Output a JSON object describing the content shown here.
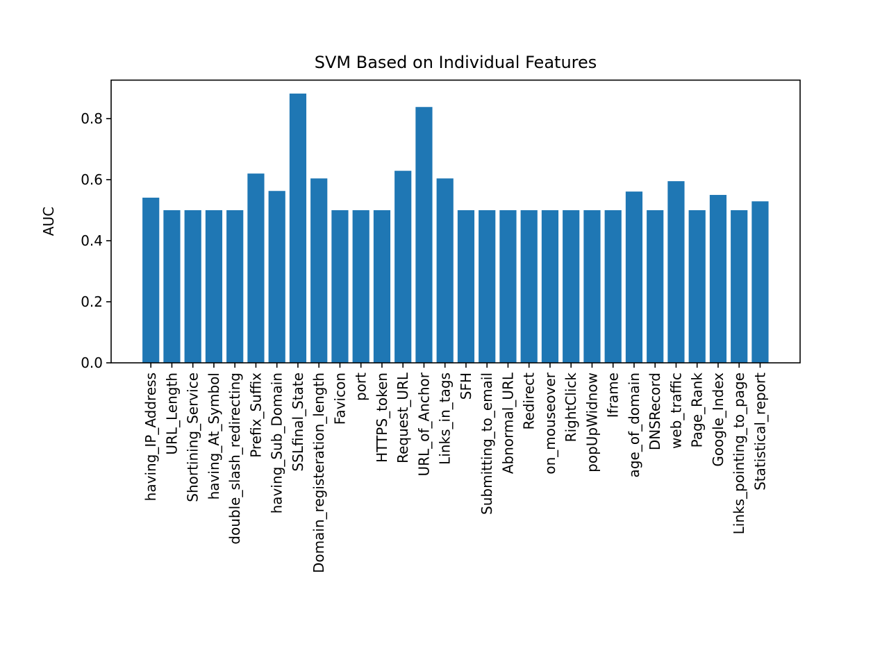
{
  "chart_data": {
    "type": "bar",
    "title": "SVM Based on Individual Features",
    "xlabel": "",
    "ylabel": "AUC",
    "ylim": [
      0,
      0.926
    ],
    "yticks": [
      "0.0",
      "0.2",
      "0.4",
      "0.6",
      "0.8"
    ],
    "grid": false,
    "categories": [
      "having_IP_Address",
      "URL_Length",
      "Shortining_Service",
      "having_At_Symbol",
      "double_slash_redirecting",
      "Prefix_Suffix",
      "having_Sub_Domain",
      "SSLfinal_State",
      "Domain_registeration_length",
      "Favicon",
      "port",
      "HTTPS_token",
      "Request_URL",
      "URL_of_Anchor",
      "Links_in_tags",
      "SFH",
      "Submitting_to_email",
      "Abnormal_URL",
      "Redirect",
      "on_mouseover",
      "RightClick",
      "popUpWidnow",
      "Iframe",
      "age_of_domain",
      "DNSRecord",
      "web_traffic",
      "Page_Rank",
      "Google_Index",
      "Links_pointing_to_page",
      "Statistical_report"
    ],
    "values": [
      0.541,
      0.5,
      0.5,
      0.5,
      0.5,
      0.62,
      0.563,
      0.882,
      0.604,
      0.5,
      0.5,
      0.5,
      0.629,
      0.838,
      0.604,
      0.5,
      0.5,
      0.5,
      0.5,
      0.5,
      0.5,
      0.5,
      0.5,
      0.561,
      0.5,
      0.595,
      0.5,
      0.55,
      0.5,
      0.529
    ],
    "bar_color": "#1f77b4"
  }
}
